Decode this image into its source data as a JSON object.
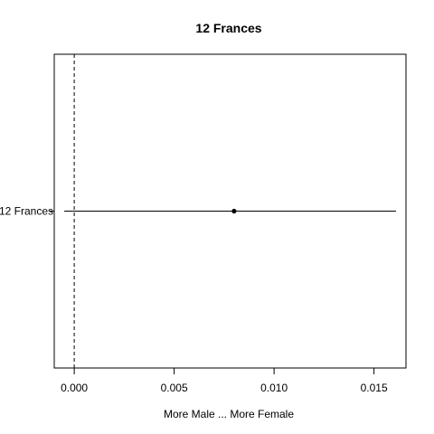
{
  "chart_data": {
    "type": "forest",
    "title": "12 Frances",
    "xlabel": "More Male ... More Female",
    "ylabel": "",
    "xlim": [
      -0.001,
      0.0166
    ],
    "x_ticks": [
      0.0,
      0.005,
      0.01,
      0.015
    ],
    "x_tick_labels": [
      "0.000",
      "0.005",
      "0.010",
      "0.015"
    ],
    "reference_line": {
      "x": 0.0,
      "style": "dashed"
    },
    "grid": false,
    "legend": "none",
    "categories": [
      "12 Frances"
    ],
    "series": [
      {
        "points": [
          {
            "label": "12 Frances",
            "estimate": 0.008,
            "lower": -0.0005,
            "upper": 0.0161
          }
        ]
      }
    ]
  },
  "colors": {
    "background": "#ffffff",
    "ink": "#000000"
  }
}
